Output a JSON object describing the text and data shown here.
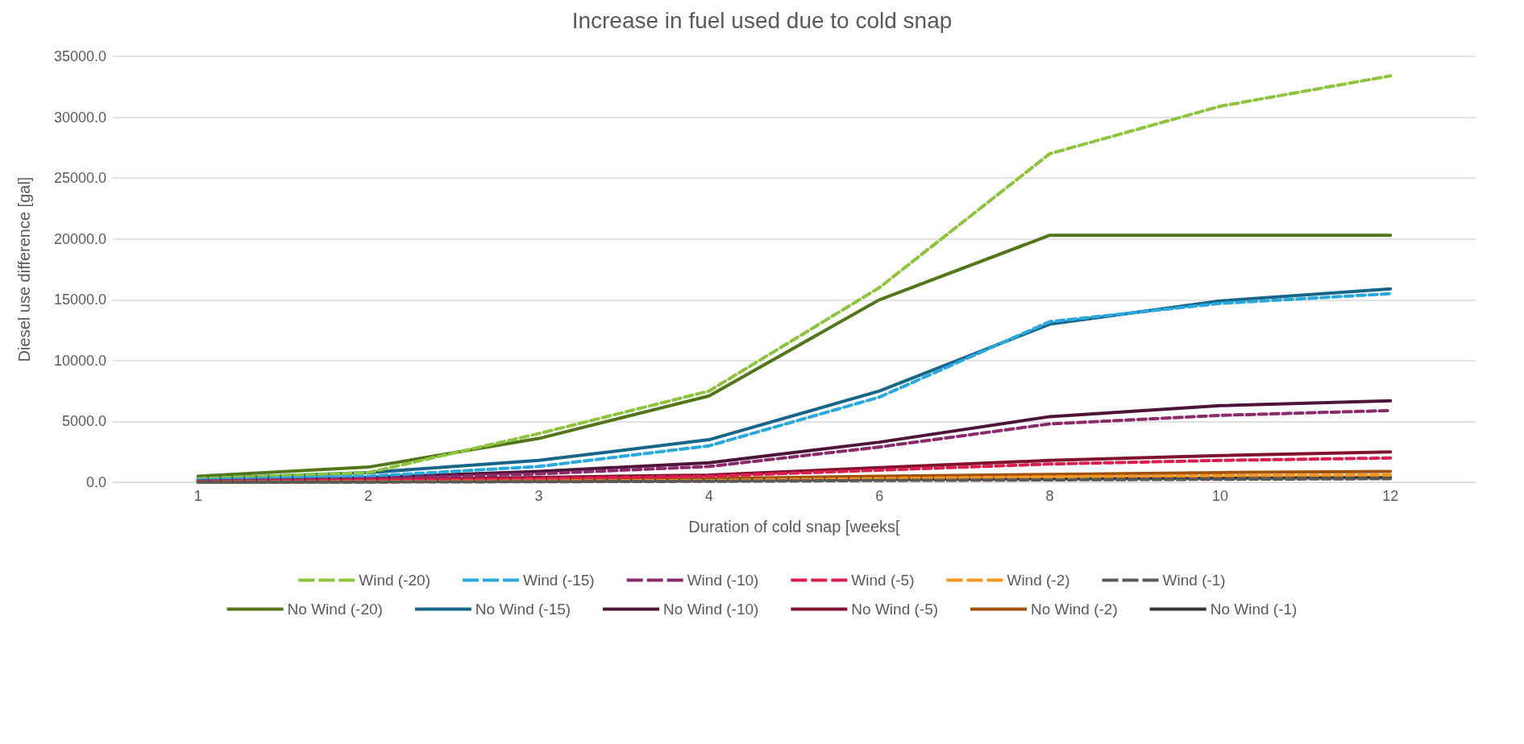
{
  "chart_data": {
    "type": "line",
    "title": "Increase in fuel used due to cold snap",
    "xlabel": "Duration of cold snap [weeks[",
    "ylabel": "Diesel use difference [gal]",
    "categories": [
      "1",
      "2",
      "3",
      "4",
      "6",
      "8",
      "10",
      "12"
    ],
    "ylim": [
      0,
      35000
    ],
    "yticks": [
      {
        "value": 0,
        "label": "0.0"
      },
      {
        "value": 5000,
        "label": "5000.0"
      },
      {
        "value": 10000,
        "label": "10000.0"
      },
      {
        "value": 15000,
        "label": "15000.0"
      },
      {
        "value": 20000,
        "label": "20000.0"
      },
      {
        "value": 25000,
        "label": "25000.0"
      },
      {
        "value": 30000,
        "label": "30000.0"
      },
      {
        "value": 35000,
        "label": "35000.0"
      }
    ],
    "grid": "y",
    "legend": "bottom",
    "marker": "none",
    "series": [
      {
        "name": "Wind (-20)",
        "color": "#8cc43c",
        "line_style": "dashed",
        "values": [
          300,
          800,
          4000,
          7500,
          16000,
          27000,
          30900,
          33400
        ]
      },
      {
        "name": "Wind (-15)",
        "color": "#29a8e0",
        "line_style": "dashed",
        "values": [
          200,
          500,
          1300,
          3000,
          7000,
          13200,
          14700,
          15500
        ]
      },
      {
        "name": "Wind (-10)",
        "color": "#8b2a6b",
        "line_style": "dashed",
        "values": [
          100,
          300,
          700,
          1300,
          2900,
          4800,
          5500,
          5900
        ]
      },
      {
        "name": "Wind (-5)",
        "color": "#dc1e4f",
        "line_style": "dashed",
        "values": [
          50,
          150,
          300,
          500,
          1000,
          1500,
          1800,
          2000
        ]
      },
      {
        "name": "Wind (-2)",
        "color": "#f7941d",
        "line_style": "dashed",
        "values": [
          20,
          50,
          100,
          150,
          300,
          450,
          550,
          600
        ]
      },
      {
        "name": "Wind (-1)",
        "color": "#595959",
        "line_style": "dashed",
        "values": [
          10,
          20,
          50,
          80,
          150,
          200,
          250,
          300
        ]
      },
      {
        "name": "No Wind (-20)",
        "color": "#53761a",
        "line_style": "solid",
        "values": [
          500,
          1250,
          3600,
          7100,
          15000,
          20300,
          20300,
          20300
        ]
      },
      {
        "name": "No Wind (-15)",
        "color": "#176689",
        "line_style": "solid",
        "values": [
          300,
          800,
          1800,
          3500,
          7500,
          13000,
          14900,
          15900
        ]
      },
      {
        "name": "No Wind (-10)",
        "color": "#4d1339",
        "line_style": "solid",
        "values": [
          200,
          400,
          900,
          1600,
          3300,
          5400,
          6300,
          6700
        ]
      },
      {
        "name": "No Wind (-5)",
        "color": "#80122e",
        "line_style": "solid",
        "values": [
          100,
          200,
          400,
          600,
          1200,
          1800,
          2200,
          2500
        ]
      },
      {
        "name": "No Wind (-2)",
        "color": "#a0520b",
        "line_style": "solid",
        "values": [
          50,
          100,
          200,
          300,
          500,
          650,
          800,
          900
        ]
      },
      {
        "name": "No Wind (-1)",
        "color": "#333333",
        "line_style": "solid",
        "values": [
          20,
          50,
          100,
          150,
          250,
          300,
          350,
          400
        ]
      }
    ]
  }
}
